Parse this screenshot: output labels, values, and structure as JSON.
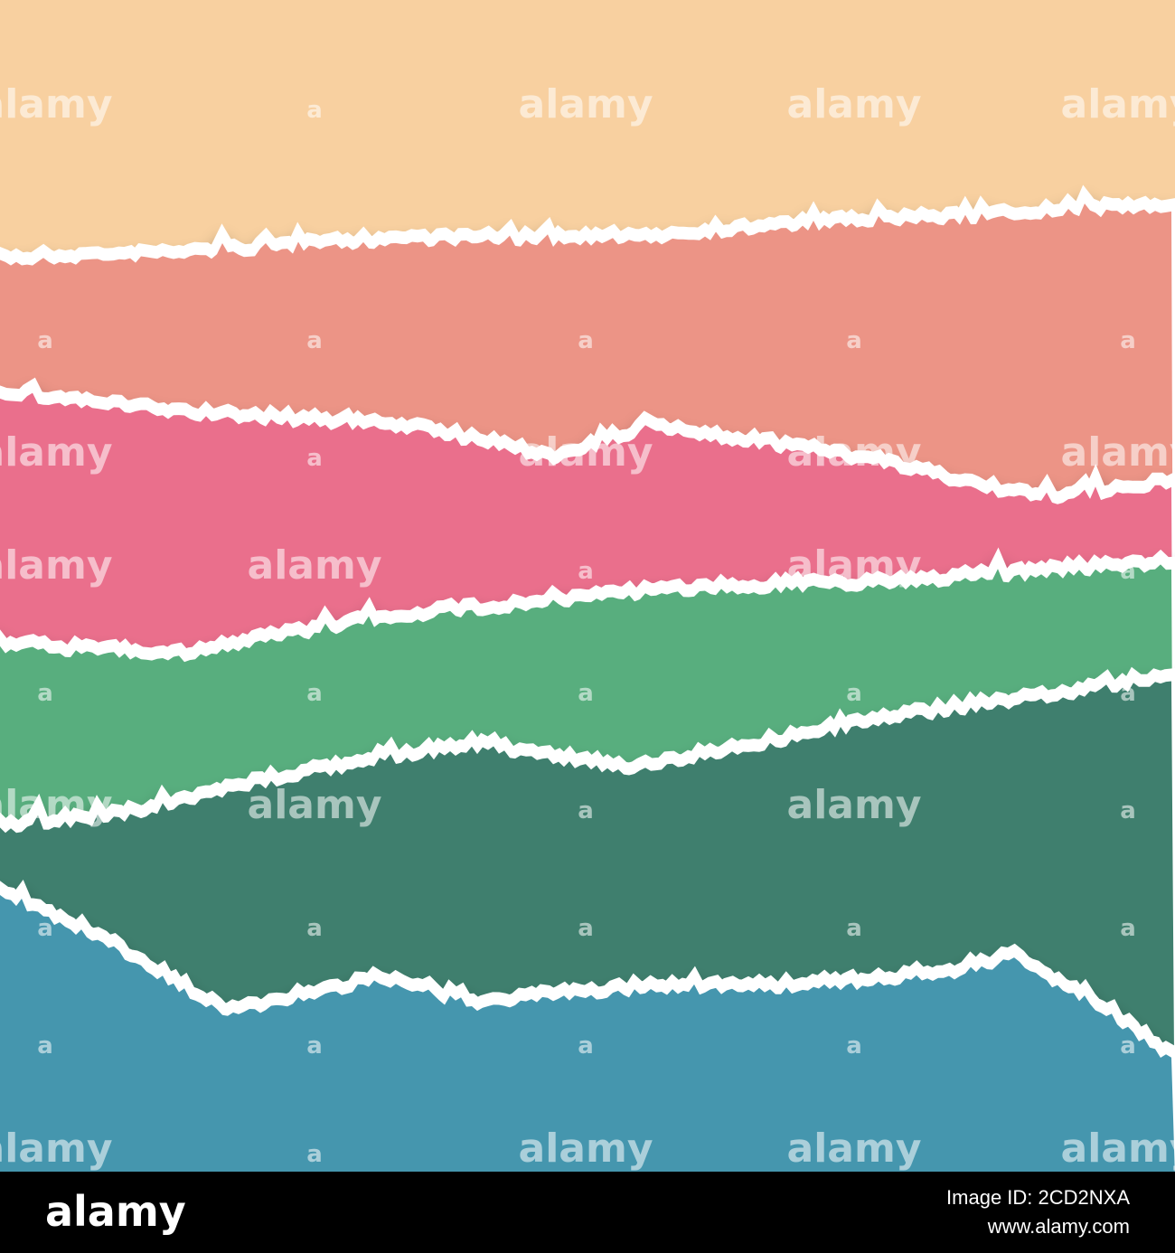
{
  "watermark": {
    "large": "alamy",
    "small": "a"
  },
  "footer": {
    "brand": "alamy",
    "image_id": "Image ID: 2CD2NXA",
    "url": "www.alamy.com"
  }
}
